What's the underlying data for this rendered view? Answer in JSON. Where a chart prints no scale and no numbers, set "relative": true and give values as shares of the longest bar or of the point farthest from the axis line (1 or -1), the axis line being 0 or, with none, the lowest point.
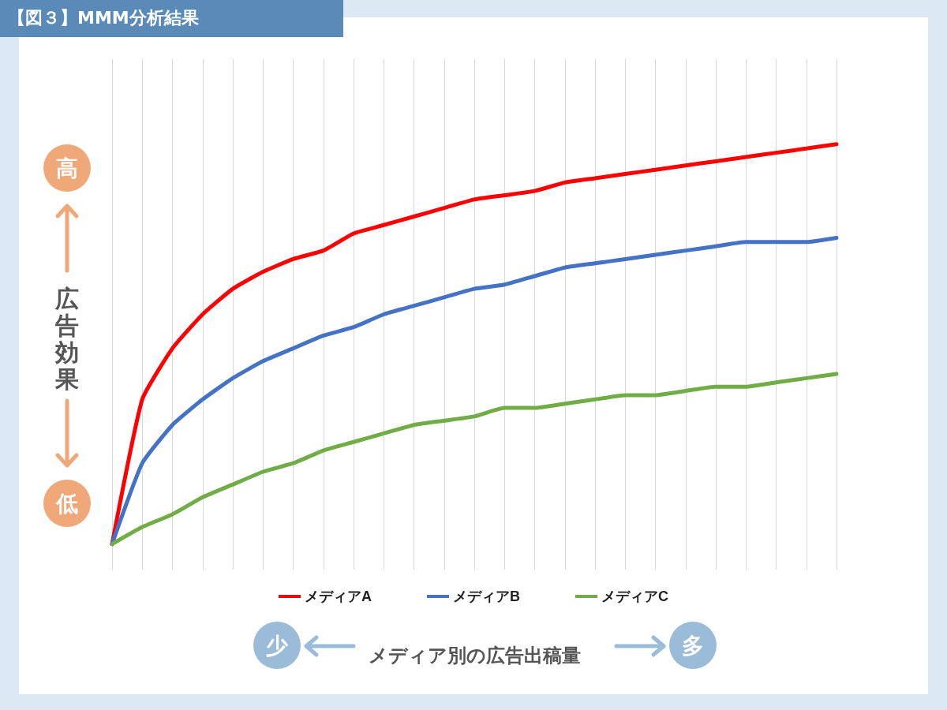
{
  "chart_data": {
    "type": "line",
    "title": "【図３】MMM分析結果",
    "xlabel": "メディア別の広告出稿量",
    "ylabel": "広告効果",
    "annotations": [
      "高",
      "低",
      "少",
      "多"
    ],
    "categories": [
      null,
      null,
      null,
      null,
      null,
      null,
      null,
      null,
      null,
      null,
      null,
      null,
      null,
      null,
      null,
      null,
      null,
      null,
      null,
      null,
      null,
      null,
      null,
      null,
      null
    ],
    "relative": true,
    "grid": "x",
    "legend": "bottom",
    "marker": "none",
    "line_style": "solid",
    "series": [
      {
        "name": "メディアA",
        "color": "#ff0000",
        "values": [
          0.06,
          0.4,
          0.52,
          0.6,
          0.66,
          0.7,
          0.73,
          0.75,
          0.79,
          0.81,
          0.83,
          0.85,
          0.87,
          0.88,
          0.89,
          0.91,
          0.92,
          0.93,
          0.94,
          0.95,
          0.96,
          0.97,
          0.98,
          0.99,
          1
        ]
      },
      {
        "name": "メディアB",
        "color": "#4472c4",
        "values": [
          0.06,
          0.25,
          0.34,
          0.4,
          0.45,
          0.49,
          0.52,
          0.55,
          0.57,
          0.6,
          0.62,
          0.64,
          0.66,
          0.67,
          0.69,
          0.71,
          0.72,
          0.73,
          0.74,
          0.75,
          0.76,
          0.77,
          0.77,
          0.77,
          0.78
        ]
      },
      {
        "name": "メディアC",
        "color": "#70ad47",
        "values": [
          0.06,
          0.1,
          0.13,
          0.17,
          0.2,
          0.23,
          0.25,
          0.28,
          0.3,
          0.32,
          0.34,
          0.35,
          0.36,
          0.38,
          0.38,
          0.39,
          0.4,
          0.41,
          0.41,
          0.42,
          0.43,
          0.43,
          0.44,
          0.45,
          0.46
        ]
      }
    ]
  }
}
